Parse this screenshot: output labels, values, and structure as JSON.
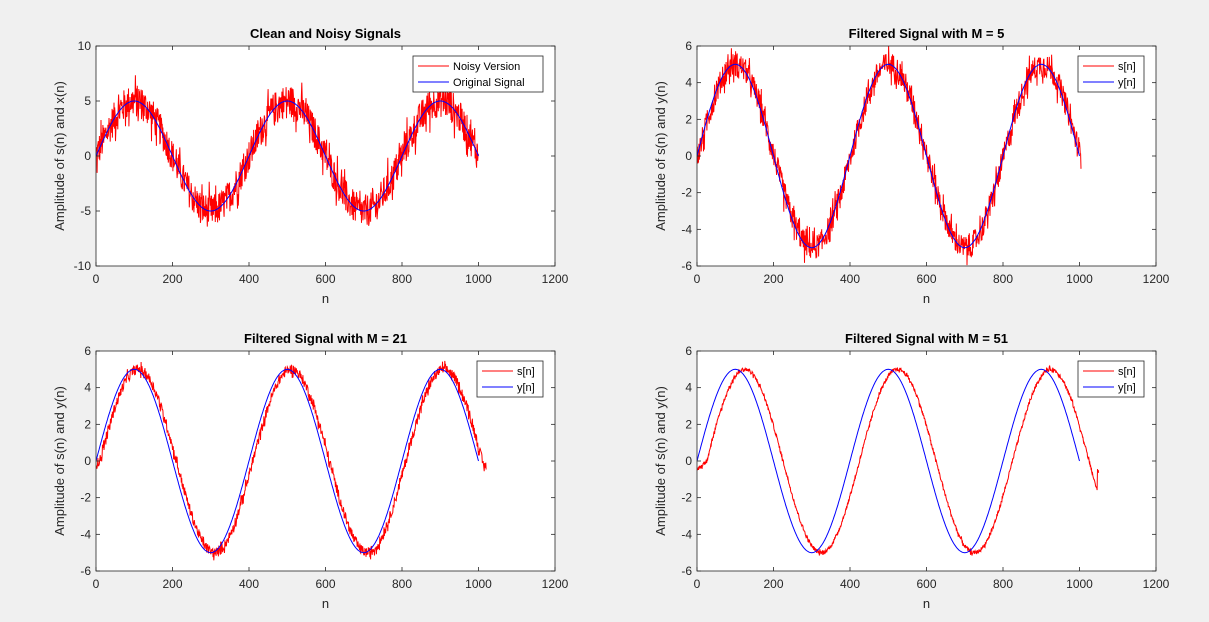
{
  "figure": {
    "background": "#f0f0f0"
  },
  "colors": {
    "red": "#ff0000",
    "blue": "#0000ff",
    "axes": "#262626",
    "plot_bg": "#ffffff"
  },
  "chart_data": [
    {
      "type": "line",
      "title": "Clean and Noisy Signals",
      "xlabel": "n",
      "ylabel": "Amplitude of s(n) and x(n)",
      "xlim": [
        0,
        1200
      ],
      "ylim": [
        -10,
        10
      ],
      "xticks": [
        0,
        200,
        400,
        600,
        800,
        1000,
        1200
      ],
      "yticks": [
        -10,
        -5,
        0,
        5,
        10
      ],
      "grid": false,
      "legend_position": "top-right",
      "series": [
        {
          "name": "Noisy Version",
          "color": "#ff0000",
          "x_range": [
            0,
            1000
          ],
          "amplitude": 5,
          "period": 400,
          "shift": 0,
          "noise_amplitude": 2.5
        },
        {
          "name": "Original Signal",
          "color": "#0000ff",
          "x_range": [
            0,
            1000
          ],
          "amplitude": 5,
          "period": 400,
          "shift": 0,
          "noise_amplitude": 0
        }
      ]
    },
    {
      "type": "line",
      "title": "Filtered Signal with M = 5",
      "xlabel": "n",
      "ylabel": "Amplitude of s(n) and y(n)",
      "xlim": [
        0,
        1200
      ],
      "ylim": [
        -6,
        6
      ],
      "xticks": [
        0,
        200,
        400,
        600,
        800,
        1000,
        1200
      ],
      "yticks": [
        -6,
        -4,
        -2,
        0,
        2,
        4,
        6
      ],
      "grid": false,
      "legend_position": "top-right",
      "series": [
        {
          "name": "s[n]",
          "color": "#ff0000",
          "x_range": [
            0,
            1004
          ],
          "amplitude": 5,
          "period": 400,
          "shift": 2,
          "noise_amplitude": 1.1
        },
        {
          "name": "y[n]",
          "color": "#0000ff",
          "x_range": [
            0,
            1000
          ],
          "amplitude": 5,
          "period": 400,
          "shift": 0,
          "noise_amplitude": 0
        }
      ]
    },
    {
      "type": "line",
      "title": "Filtered Signal with M = 21",
      "xlabel": "n",
      "ylabel": "Amplitude of s(n) and y(n)",
      "xlim": [
        0,
        1200
      ],
      "ylim": [
        -6,
        6
      ],
      "xticks": [
        0,
        200,
        400,
        600,
        800,
        1000,
        1200
      ],
      "yticks": [
        -6,
        -4,
        -2,
        0,
        2,
        4,
        6
      ],
      "grid": false,
      "legend_position": "top-right",
      "series": [
        {
          "name": "s[n]",
          "color": "#ff0000",
          "x_range": [
            0,
            1020
          ],
          "amplitude": 5,
          "period": 400,
          "shift": 10,
          "noise_amplitude": 0.45
        },
        {
          "name": "y[n]",
          "color": "#0000ff",
          "x_range": [
            0,
            1000
          ],
          "amplitude": 5,
          "period": 400,
          "shift": 0,
          "noise_amplitude": 0
        }
      ]
    },
    {
      "type": "line",
      "title": "Filtered Signal with M = 51",
      "xlabel": "n",
      "ylabel": "Amplitude of s(n) and y(n)",
      "xlim": [
        0,
        1200
      ],
      "ylim": [
        -6,
        6
      ],
      "xticks": [
        0,
        200,
        400,
        600,
        800,
        1000,
        1200
      ],
      "yticks": [
        -6,
        -4,
        -2,
        0,
        2,
        4,
        6
      ],
      "grid": false,
      "legend_position": "top-right",
      "series": [
        {
          "name": "s[n]",
          "color": "#ff0000",
          "x_range": [
            0,
            1050
          ],
          "amplitude": 5,
          "period": 400,
          "shift": 25,
          "noise_amplitude": 0.18
        },
        {
          "name": "y[n]",
          "color": "#0000ff",
          "x_range": [
            0,
            1000
          ],
          "amplitude": 5,
          "period": 400,
          "shift": 0,
          "noise_amplitude": 0
        }
      ]
    }
  ]
}
